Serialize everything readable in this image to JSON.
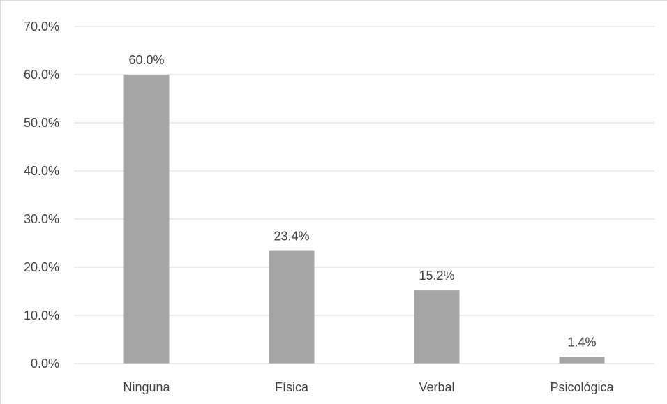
{
  "chart_data": {
    "type": "bar",
    "title": "",
    "xlabel": "",
    "ylabel": "",
    "categories": [
      "Ninguna",
      "Física",
      "Verbal",
      "Psicológica"
    ],
    "values": [
      60.0,
      23.4,
      15.2,
      1.4
    ],
    "value_labels": [
      "60.0%",
      "23.4%",
      "15.2%",
      "1.4%"
    ],
    "ylim": [
      0,
      70
    ],
    "yticks": [
      0,
      10,
      20,
      30,
      40,
      50,
      60,
      70
    ],
    "ytick_labels": [
      "0.0%",
      "10.0%",
      "20.0%",
      "30.0%",
      "40.0%",
      "50.0%",
      "60.0%",
      "70.0%"
    ],
    "grid": true,
    "legend": "none",
    "colors": {
      "bar": "#a5a5a5",
      "grid": "#d9d9d9",
      "text": "#404040"
    }
  }
}
